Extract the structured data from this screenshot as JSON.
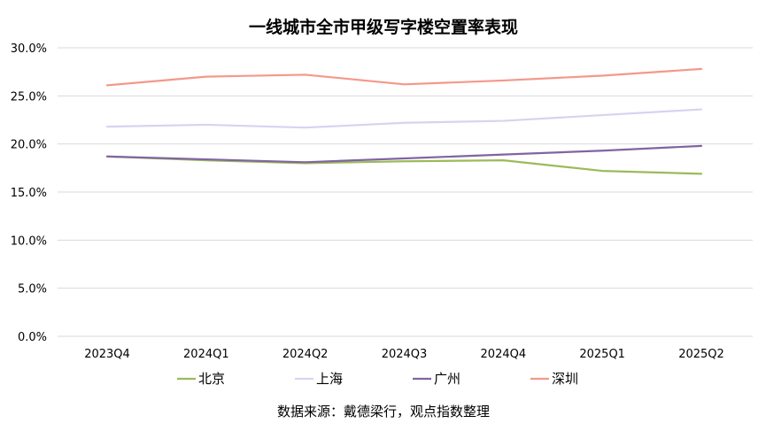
{
  "chart_data": {
    "type": "line",
    "title": "一线城市全市甲级写字楼空置率表现",
    "categories": [
      "2023Q4",
      "2024Q1",
      "2024Q2",
      "2024Q3",
      "2024Q4",
      "2025Q1",
      "2025Q2"
    ],
    "y_ticks": [
      "0.0%",
      "5.0%",
      "10.0%",
      "15.0%",
      "20.0%",
      "25.0%",
      "30.0%"
    ],
    "ylim": [
      0,
      30
    ],
    "grid": true,
    "legend_position": "bottom",
    "series": [
      {
        "name": "北京",
        "color": "#9bbb59",
        "values": [
          18.7,
          18.3,
          18.0,
          18.2,
          18.3,
          17.2,
          16.9
        ]
      },
      {
        "name": "上海",
        "color": "#d9d2f0",
        "values": [
          21.8,
          22.0,
          21.7,
          22.2,
          22.4,
          23.0,
          23.6
        ]
      },
      {
        "name": "广州",
        "color": "#8064a2",
        "values": [
          18.7,
          18.4,
          18.1,
          18.5,
          18.9,
          19.3,
          19.8
        ]
      },
      {
        "name": "深圳",
        "color": "#f4988a",
        "values": [
          26.1,
          27.0,
          27.2,
          26.2,
          26.6,
          27.1,
          27.8
        ]
      }
    ],
    "source": "数据来源：戴德梁行，观点指数整理"
  }
}
